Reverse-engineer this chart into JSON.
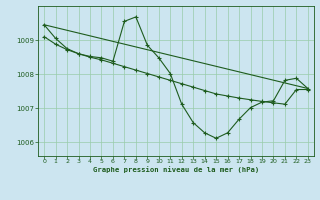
{
  "title": "Graphe pression niveau de la mer (hPa)",
  "bg_color": "#cce5f0",
  "line_color": "#1e5c1e",
  "grid_color": "#99ccaa",
  "x_ticks": [
    0,
    1,
    2,
    3,
    4,
    5,
    6,
    7,
    8,
    9,
    10,
    11,
    12,
    13,
    14,
    15,
    16,
    17,
    18,
    19,
    20,
    21,
    22,
    23
  ],
  "y_ticks": [
    1006,
    1007,
    1008,
    1009
  ],
  "ylim": [
    1005.6,
    1010.0
  ],
  "xlim": [
    -0.5,
    23.5
  ],
  "series1": {
    "x": [
      0,
      1,
      2,
      3,
      4,
      5,
      6,
      7,
      8,
      9,
      10,
      11,
      12,
      13,
      14,
      15,
      16,
      17,
      18,
      19,
      20,
      21,
      22,
      23
    ],
    "y": [
      1009.45,
      1009.05,
      1008.75,
      1008.6,
      1008.52,
      1008.48,
      1008.38,
      1009.55,
      1009.68,
      1008.85,
      1008.48,
      1008.02,
      1007.12,
      1006.58,
      1006.28,
      1006.12,
      1006.28,
      1006.68,
      1007.02,
      1007.18,
      1007.22,
      1007.82,
      1007.88,
      1007.58
    ]
  },
  "series2": {
    "x": [
      0,
      23
    ],
    "y": [
      1009.45,
      1007.58
    ]
  },
  "series3": {
    "x": [
      0,
      1,
      2,
      3,
      4,
      5,
      6,
      7,
      8,
      9,
      10,
      11,
      12,
      13,
      14,
      15,
      16,
      17,
      18,
      19,
      20,
      21,
      22,
      23
    ],
    "y": [
      1009.1,
      1008.88,
      1008.72,
      1008.6,
      1008.5,
      1008.42,
      1008.32,
      1008.22,
      1008.12,
      1008.02,
      1007.92,
      1007.82,
      1007.72,
      1007.62,
      1007.52,
      1007.42,
      1007.36,
      1007.3,
      1007.25,
      1007.2,
      1007.16,
      1007.12,
      1007.55,
      1007.55
    ]
  }
}
